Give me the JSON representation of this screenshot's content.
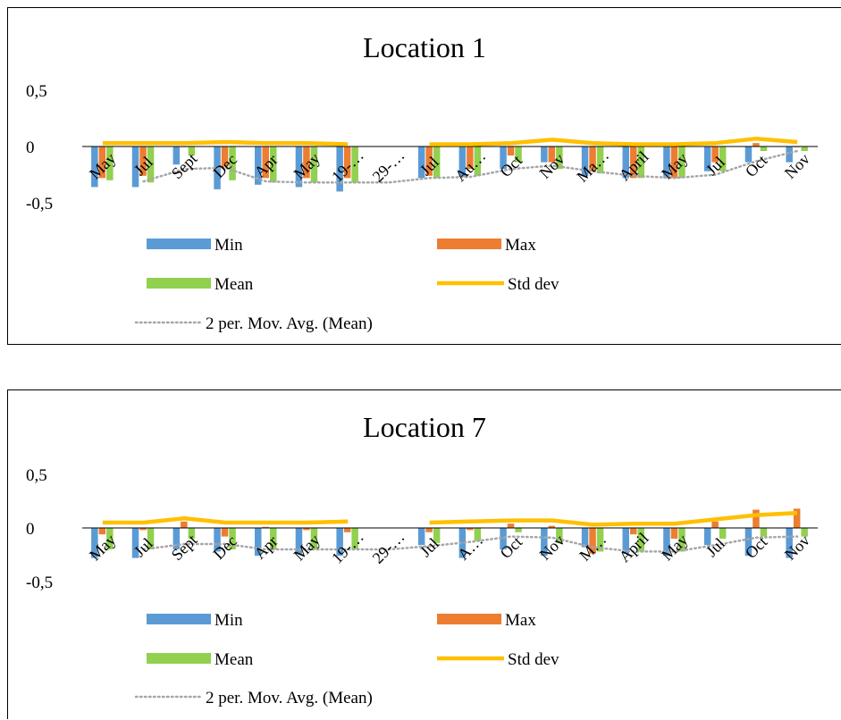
{
  "colors": {
    "min": "#5B9BD5",
    "max": "#ED7D31",
    "mean": "#92D050",
    "std": "#FFC000",
    "movavg": "#A6A6A6"
  },
  "chart_data": [
    {
      "type": "bar",
      "title": "Location 1",
      "categories": [
        "May",
        "Jul",
        "Sept",
        "Dec",
        "Apr",
        "May",
        "19-…",
        "29-…",
        "Jul",
        "Au…",
        "Oct",
        "Nov",
        "Ma…",
        "April",
        "May",
        "Jul",
        "Oct",
        "Nov"
      ],
      "ylim": [
        -0.5,
        0.5
      ],
      "yticks": [
        0.5,
        0,
        -0.5
      ],
      "ytick_labels": [
        "0,5",
        "0",
        "-0,5"
      ],
      "legend": [
        "Min",
        "Max",
        "Mean",
        "Std dev",
        "2 per. Mov. Avg. (Mean)"
      ],
      "legend_position": "bottom",
      "grid": false,
      "series": [
        {
          "name": "Min",
          "kind": "bar",
          "color_key": "min",
          "values": [
            -0.36,
            -0.36,
            -0.16,
            -0.38,
            -0.34,
            -0.36,
            -0.4,
            null,
            -0.28,
            -0.27,
            -0.2,
            -0.14,
            -0.26,
            -0.28,
            -0.28,
            -0.22,
            -0.14,
            -0.14
          ]
        },
        {
          "name": "Max",
          "kind": "bar",
          "color_key": "max",
          "values": [
            -0.28,
            -0.26,
            0.0,
            -0.18,
            -0.28,
            -0.28,
            -0.28,
            null,
            -0.26,
            -0.2,
            -0.08,
            -0.14,
            -0.22,
            -0.28,
            -0.28,
            -0.14,
            0.03,
            0.0
          ]
        },
        {
          "name": "Mean",
          "kind": "bar",
          "color_key": "mean",
          "values": [
            -0.3,
            -0.32,
            -0.08,
            -0.3,
            -0.32,
            -0.32,
            -0.32,
            null,
            -0.28,
            -0.26,
            -0.14,
            -0.2,
            -0.24,
            -0.28,
            -0.28,
            -0.22,
            -0.04,
            -0.04
          ]
        },
        {
          "name": "Std dev",
          "kind": "line",
          "color_key": "std",
          "values": [
            0.03,
            0.03,
            0.03,
            0.04,
            0.03,
            0.03,
            0.02,
            null,
            0.02,
            0.02,
            0.03,
            0.06,
            0.03,
            0.02,
            0.02,
            0.03,
            0.07,
            0.04
          ]
        },
        {
          "name": "2 per. Mov. Avg. (Mean)",
          "kind": "dotted",
          "color_key": "movavg",
          "values": [
            null,
            -0.31,
            -0.2,
            -0.19,
            -0.31,
            -0.32,
            -0.32,
            -0.32,
            -0.28,
            -0.27,
            -0.2,
            -0.17,
            -0.22,
            -0.26,
            -0.28,
            -0.25,
            -0.13,
            -0.04
          ]
        }
      ]
    },
    {
      "type": "bar",
      "title": "Location 7",
      "categories": [
        "May",
        "Jul",
        "Sept",
        "Dec",
        "Apr",
        "May",
        "19-…",
        "29-…",
        "Jul",
        "A…",
        "Oct",
        "Nov",
        "M…",
        "April",
        "May",
        "Jul",
        "Oct",
        "Nov"
      ],
      "ylim": [
        -0.5,
        0.5
      ],
      "yticks": [
        0.5,
        0,
        -0.5
      ],
      "ytick_labels": [
        "0,5",
        "0",
        "-0,5"
      ],
      "legend": [
        "Min",
        "Max",
        "Mean",
        "Std dev",
        "2 per. Mov. Avg. (Mean)"
      ],
      "legend_position": "bottom",
      "grid": false,
      "series": [
        {
          "name": "Min",
          "kind": "bar",
          "color_key": "min",
          "values": [
            -0.28,
            -0.28,
            -0.2,
            -0.22,
            -0.26,
            -0.24,
            -0.26,
            null,
            -0.16,
            -0.28,
            -0.2,
            -0.26,
            -0.18,
            -0.24,
            -0.26,
            -0.16,
            -0.26,
            -0.28
          ]
        },
        {
          "name": "Max",
          "kind": "bar",
          "color_key": "max",
          "values": [
            -0.06,
            -0.02,
            0.06,
            -0.08,
            0.01,
            -0.02,
            -0.04,
            null,
            -0.04,
            -0.02,
            0.04,
            0.02,
            -0.24,
            -0.06,
            -0.1,
            0.06,
            0.17,
            0.18
          ]
        },
        {
          "name": "Mean",
          "kind": "bar",
          "color_key": "mean",
          "values": [
            -0.2,
            -0.2,
            -0.1,
            -0.2,
            -0.2,
            -0.2,
            -0.2,
            null,
            -0.14,
            -0.12,
            -0.04,
            -0.14,
            -0.22,
            -0.22,
            -0.22,
            -0.1,
            -0.08,
            -0.08
          ]
        },
        {
          "name": "Std dev",
          "kind": "line",
          "color_key": "std",
          "values": [
            0.05,
            0.05,
            0.09,
            0.05,
            0.05,
            0.05,
            0.06,
            null,
            0.05,
            0.06,
            0.07,
            0.07,
            0.03,
            0.04,
            0.04,
            0.08,
            0.12,
            0.14
          ]
        },
        {
          "name": "2 per. Mov. Avg. (Mean)",
          "kind": "dotted",
          "color_key": "movavg",
          "values": [
            null,
            -0.2,
            -0.15,
            -0.15,
            -0.2,
            -0.2,
            -0.2,
            -0.2,
            -0.17,
            -0.13,
            -0.08,
            -0.09,
            -0.18,
            -0.22,
            -0.22,
            -0.16,
            -0.09,
            -0.08
          ]
        }
      ]
    }
  ]
}
